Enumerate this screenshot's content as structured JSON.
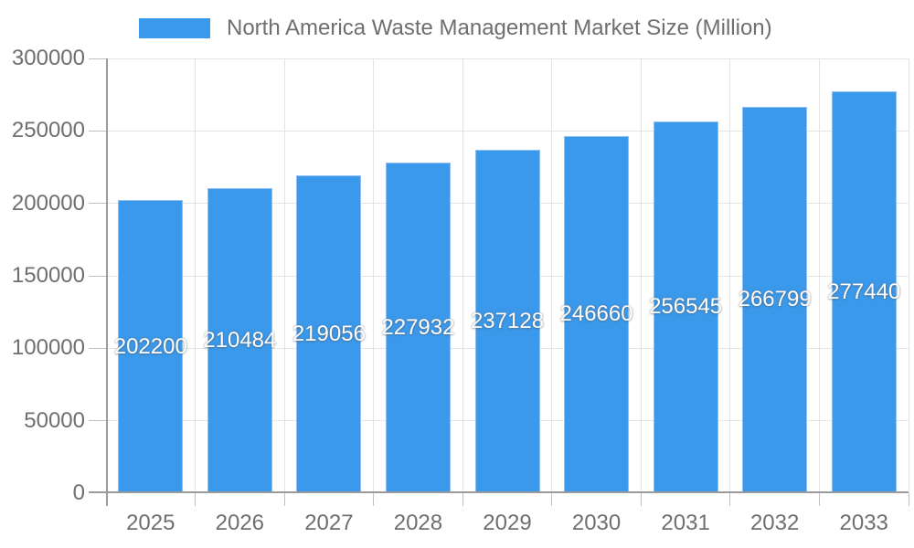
{
  "chart_data": {
    "type": "bar",
    "title": "North America Waste Management Market Size (Million)",
    "categories": [
      "2025",
      "2026",
      "2027",
      "2028",
      "2029",
      "2030",
      "2031",
      "2032",
      "2033"
    ],
    "values": [
      202200,
      210484,
      219056,
      227932,
      237128,
      246660,
      256545,
      266799,
      277440
    ],
    "bar_value_labels": [
      "202200",
      "210484",
      "219056",
      "227932",
      "237128",
      "246660",
      "256545",
      "266799",
      "277440"
    ],
    "xlabel": "",
    "ylabel": "",
    "ylim": [
      0,
      300000
    ],
    "yticks": [
      0,
      50000,
      100000,
      150000,
      200000,
      250000,
      300000
    ],
    "ytick_labels": [
      "0",
      "50000",
      "100000",
      "150000",
      "200000",
      "250000",
      "300000"
    ],
    "grid": true,
    "legend_position": "top",
    "legend_entries": [
      "North America Waste Management Market Size (Million)"
    ],
    "colors": {
      "bar": "#3B99EC",
      "bar_border": "#8FC0F1",
      "bar_label": "#FFFFFF",
      "grid": "#E4E4E4",
      "axis": "#9B9B9B",
      "tick": "#C0C0C0",
      "tick_label": "#6F6F6F",
      "legend_text": "#6F6F6F",
      "background": "#FFFFFF"
    }
  }
}
